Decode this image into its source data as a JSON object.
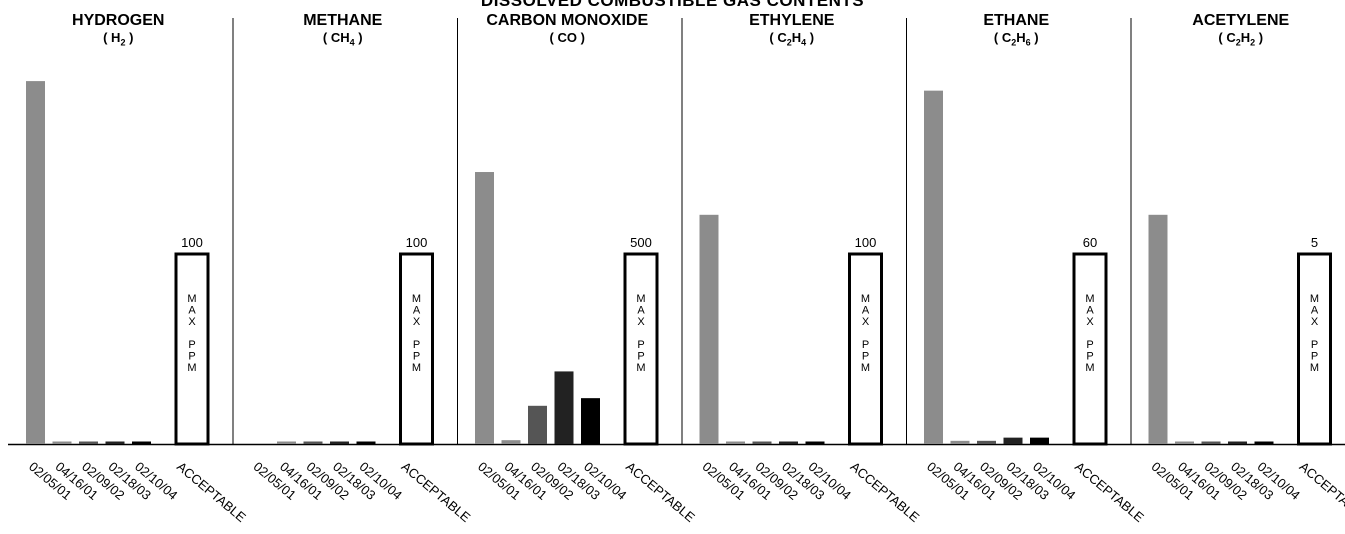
{
  "title": "DISSOLVED COMBUSTIBLE GAS CONTENTS",
  "colors": {
    "bar_0": "#8c8c8c",
    "bar_1": "#8c8c8c",
    "bar_2": "#555555",
    "bar_3": "#222222",
    "bar_4": "#000000",
    "acceptable_frame": "#000000",
    "axis": "#000000"
  },
  "chart_data": [
    {
      "type": "bar",
      "title": "HYDROGEN",
      "formula": [
        "( H",
        "2",
        " )"
      ],
      "categories": [
        "02/05/01",
        "04/16/01",
        "02/09/02",
        "02/18/03",
        "02/10/04",
        "ACCEPTABLE"
      ],
      "values": [
        190,
        1,
        1,
        1,
        1,
        100
      ],
      "acceptable_label": "100",
      "acceptable_text": [
        "M",
        "A",
        "X",
        "",
        "P",
        "P",
        "M"
      ],
      "ylim": [
        0,
        200
      ]
    },
    {
      "type": "bar",
      "title": "METHANE",
      "formula": [
        "( CH",
        "4",
        " )"
      ],
      "categories": [
        "02/05/01",
        "04/16/01",
        "02/09/02",
        "02/18/03",
        "02/10/04",
        "ACCEPTABLE"
      ],
      "values": [
        0,
        1,
        1,
        1,
        1,
        100
      ],
      "acceptable_label": "100",
      "acceptable_text": [
        "M",
        "A",
        "X",
        "",
        "P",
        "P",
        "M"
      ],
      "ylim": [
        0,
        200
      ]
    },
    {
      "type": "bar",
      "title": "CARBON MONOXIDE",
      "formula": [
        "( CO )"
      ],
      "categories": [
        "02/05/01",
        "04/16/01",
        "02/09/02",
        "02/18/03",
        "02/10/04",
        "ACCEPTABLE"
      ],
      "values": [
        712,
        10,
        100,
        190,
        120,
        500
      ],
      "acceptable_label": "500",
      "acceptable_text": [
        "M",
        "A",
        "X",
        "",
        "P",
        "P",
        "M"
      ],
      "ylim": [
        0,
        1000
      ]
    },
    {
      "type": "bar",
      "title": "ETHYLENE",
      "formula": [
        "( C",
        "2",
        "H",
        "4",
        " )"
      ],
      "categories": [
        "02/05/01",
        "04/16/01",
        "02/09/02",
        "02/18/03",
        "02/10/04",
        "ACCEPTABLE"
      ],
      "values": [
        120,
        1,
        1,
        1,
        1,
        100
      ],
      "acceptable_label": "100",
      "acceptable_text": [
        "M",
        "A",
        "X",
        "",
        "P",
        "P",
        "M"
      ],
      "ylim": [
        0,
        200
      ]
    },
    {
      "type": "bar",
      "title": "ETHANE",
      "formula": [
        "( C",
        "2",
        "H",
        "6",
        " )"
      ],
      "categories": [
        "02/05/01",
        "04/16/01",
        "02/09/02",
        "02/18/03",
        "02/10/04",
        "ACCEPTABLE"
      ],
      "values": [
        111,
        1,
        1,
        2,
        2,
        60
      ],
      "acceptable_label": "60",
      "acceptable_text": [
        "M",
        "A",
        "X",
        "",
        "P",
        "P",
        "M"
      ],
      "ylim": [
        0,
        120
      ]
    },
    {
      "type": "bar",
      "title": "ACETYLENE",
      "formula": [
        "( C",
        "2",
        "H",
        "2",
        " )"
      ],
      "categories": [
        "02/05/01",
        "04/16/01",
        "02/09/02",
        "02/18/03",
        "02/10/04",
        "ACCEPTABLE"
      ],
      "values": [
        6,
        0.05,
        0.05,
        0.05,
        0.05,
        5
      ],
      "acceptable_label": "5",
      "acceptable_text": [
        "M",
        "A",
        "X",
        "",
        "P",
        "P",
        "M"
      ],
      "ylim": [
        0,
        10
      ]
    }
  ]
}
